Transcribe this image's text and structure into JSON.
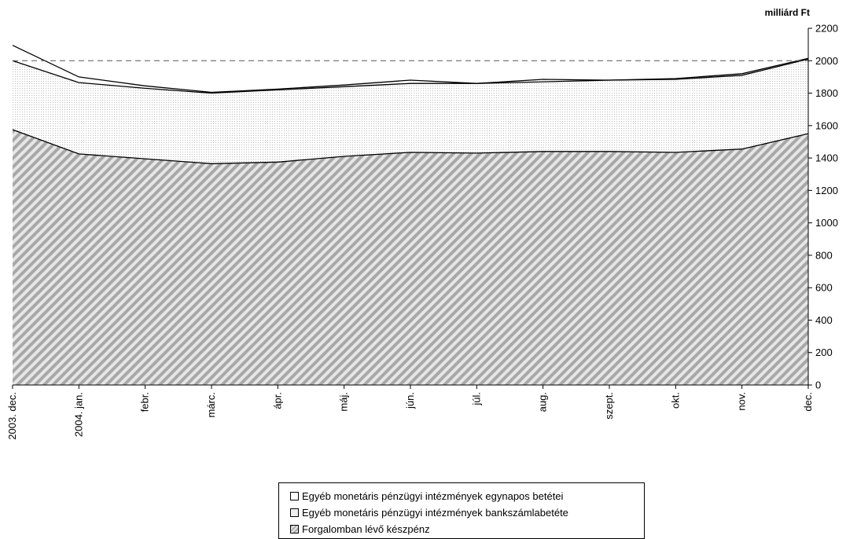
{
  "chart_data": {
    "type": "area",
    "stacked": true,
    "unit_label": "milliárd Ft",
    "categories": [
      "2003. dec.",
      "2004. jan.",
      "febr.",
      "márc.",
      "ápr.",
      "máj.",
      "jún.",
      "júl.",
      "aug.",
      "szept.",
      "okt.",
      "nov.",
      "dec."
    ],
    "series": [
      {
        "name": "Forgalomban lévő készpénz",
        "values": [
          1575,
          1425,
          1395,
          1365,
          1375,
          1410,
          1435,
          1430,
          1440,
          1440,
          1435,
          1455,
          1550
        ],
        "fill": "hatch"
      },
      {
        "name": "Egyéb monetáris pénzügyi intézmények bankszámlabetéte",
        "values": [
          425,
          440,
          435,
          435,
          445,
          430,
          425,
          430,
          430,
          440,
          450,
          455,
          460
        ],
        "fill": "dots"
      },
      {
        "name": "Egyéb monetáris pénzügyi intézmények egynapos betétei",
        "values": [
          95,
          35,
          15,
          5,
          5,
          10,
          20,
          0,
          15,
          0,
          5,
          10,
          5
        ],
        "fill": "white"
      }
    ],
    "y_axis": {
      "position": "right",
      "min": 0,
      "max": 2200,
      "step": 200,
      "ticks": [
        "0",
        "200",
        "400",
        "600",
        "800",
        "1000",
        "1200",
        "1400",
        "1600",
        "1800",
        "2000",
        "2200"
      ]
    },
    "reference_line": {
      "y": 2000,
      "style": "dashed"
    },
    "legend": {
      "position": "bottom"
    },
    "grid": false
  }
}
